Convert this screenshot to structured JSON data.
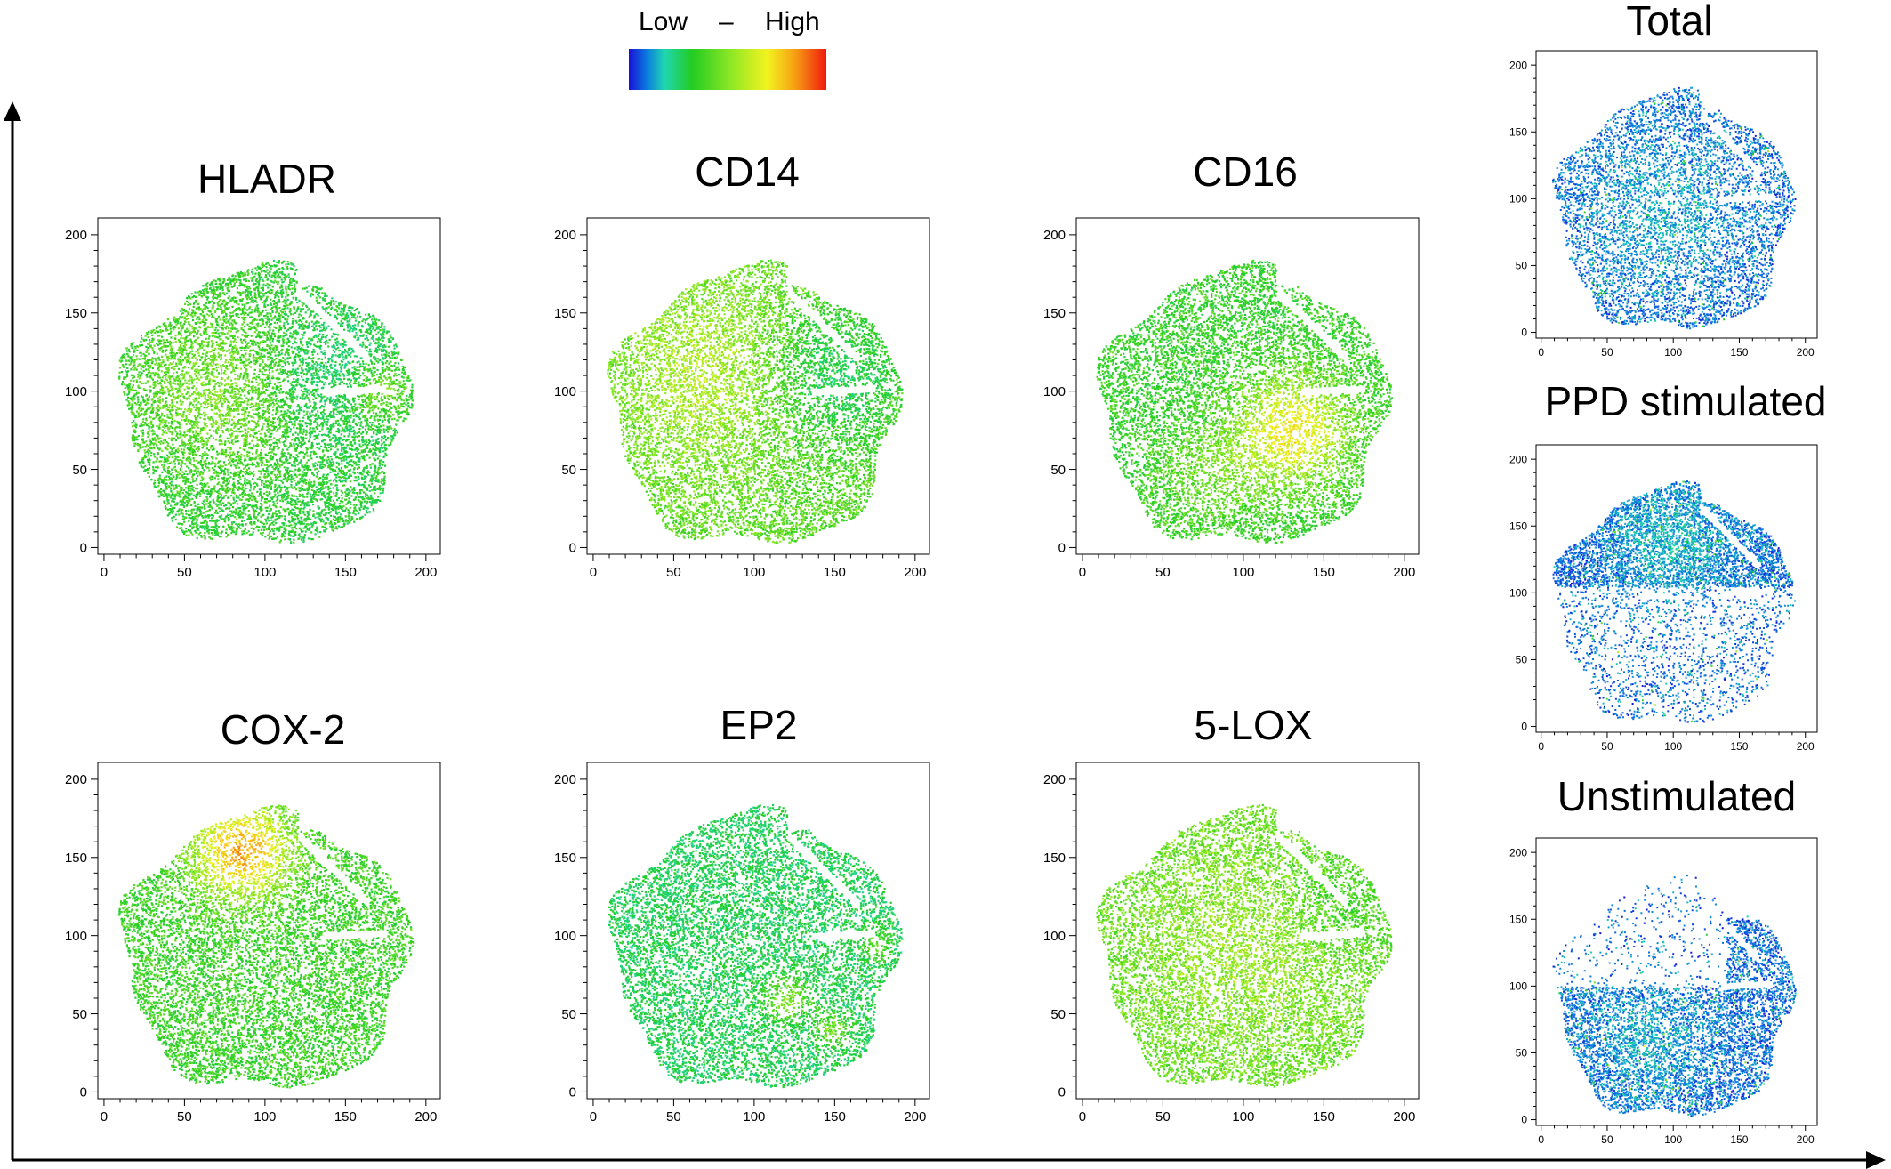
{
  "legend": {
    "low": "Low",
    "separator": "–",
    "high": "High"
  },
  "panels": [
    {
      "title": "HLADR",
      "scheme": "hladr"
    },
    {
      "title": "CD14",
      "scheme": "cd14"
    },
    {
      "title": "CD16",
      "scheme": "cd16"
    },
    {
      "title": "COX-2",
      "scheme": "cox2"
    },
    {
      "title": "EP2",
      "scheme": "ep2"
    },
    {
      "title": "5-LOX",
      "scheme": "lox5"
    },
    {
      "title": "Total",
      "scheme": "density_total"
    },
    {
      "title": "PPD stimulated",
      "scheme": "density_ppd"
    },
    {
      "title": "Unstimulated",
      "scheme": "density_unstim"
    }
  ],
  "chart_data": {
    "type": "scatter",
    "subtype": "tSNE heatmap scatter",
    "xlim": [
      0,
      200
    ],
    "ylim": [
      0,
      200
    ],
    "x_ticks": [
      "0",
      "50",
      "100",
      "150",
      "200"
    ],
    "y_ticks": [
      "0",
      "50",
      "100",
      "150",
      "200"
    ],
    "color_scale": {
      "low_label": "Low",
      "high_label": "High",
      "colors": [
        "#1a10d8",
        "#0a7ae0",
        "#1fd6b2",
        "#22cc22",
        "#8fe824",
        "#f3f320",
        "#f7a012",
        "#f01a10"
      ]
    },
    "population_center": [
      100,
      90
    ],
    "population_radius": 95
  }
}
